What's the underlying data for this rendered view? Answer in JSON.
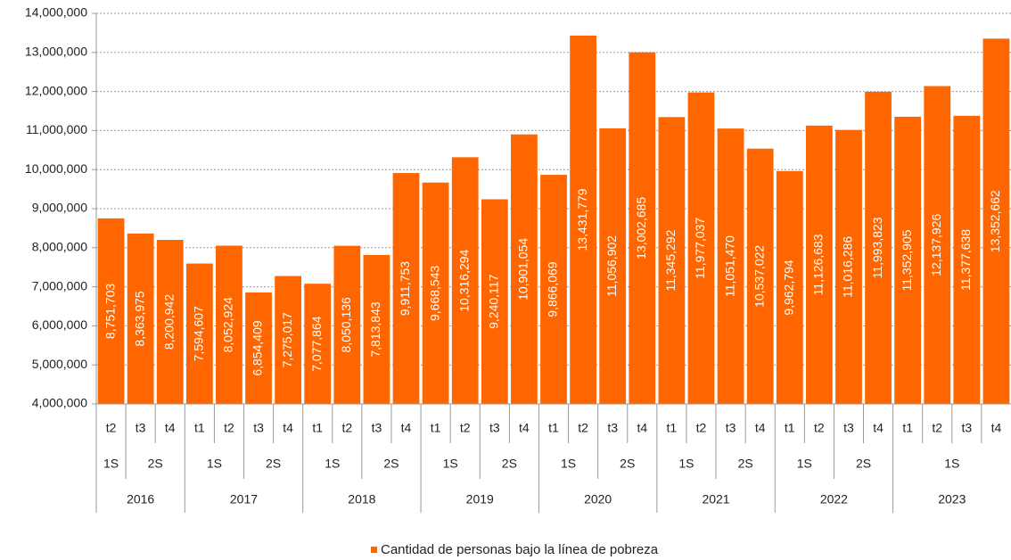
{
  "chart_data": {
    "type": "bar",
    "categories": [
      "t2",
      "t3",
      "t4",
      "t1",
      "t2",
      "t3",
      "t4",
      "t1",
      "t2",
      "t3",
      "t4",
      "t1",
      "t2",
      "t3",
      "t4",
      "t1",
      "t2",
      "t3",
      "t4",
      "t1",
      "t2",
      "t3",
      "t4",
      "t1",
      "t2",
      "t3",
      "t4",
      "t1",
      "t2",
      "t3",
      "t4"
    ],
    "semesters": [
      "1S",
      "2S",
      null,
      "1S",
      null,
      "2S",
      null,
      "1S",
      null,
      "2S",
      null,
      "1S",
      null,
      "2S",
      null,
      "1S",
      null,
      "2S",
      null,
      "1S",
      null,
      "2S",
      null,
      "1S",
      null,
      "2S",
      null,
      "1S",
      null,
      null,
      null
    ],
    "years": [
      "2016",
      null,
      null,
      "2017",
      null,
      null,
      null,
      "2018",
      null,
      null,
      null,
      "2019",
      null,
      null,
      null,
      "2020",
      null,
      null,
      null,
      "2021",
      null,
      null,
      null,
      "2022",
      null,
      null,
      null,
      "2023",
      null,
      null,
      null
    ],
    "series": [
      {
        "name": "Cantidad de personas bajo la línea de pobreza",
        "color": "#ff6600",
        "values": [
          8751703,
          8363975,
          8200942,
          7594607,
          8052924,
          6854409,
          7275017,
          7077864,
          8050136,
          7813843,
          9911753,
          9668543,
          10316294,
          9240117,
          10901054,
          9866069,
          13431779,
          11056902,
          13002685,
          11345292,
          11977037,
          11051470,
          10537022,
          9962794,
          11126683,
          11016286,
          11993823,
          11352905,
          12137926,
          11377638,
          13352662
        ],
        "value_labels": [
          "8,751,703",
          "8,363,975",
          "8,200,942",
          "7,594,607",
          "8,052,924",
          "6,854,409",
          "7,275,017",
          "7,077,864",
          "8,050,136",
          "7,813,843",
          "9,911,753",
          "9,668,543",
          "10,316,294",
          "9,240,117",
          "10,901,054",
          "9,866,069",
          "13,431,779",
          "11,056,902",
          "13,002,685",
          "11,345,292",
          "11,977,037",
          "11,051,470",
          "10,537,022",
          "9,962,794",
          "11,126,683",
          "11,016,286",
          "11,993,823",
          "11,352,905",
          "12,137,926",
          "11,377,638",
          "13,352,662"
        ]
      }
    ],
    "ylim": [
      4000000,
      14000000
    ],
    "yticks": [
      {
        "value": 4000000,
        "label": "4,000,000"
      },
      {
        "value": 5000000,
        "label": "5,000,000"
      },
      {
        "value": 6000000,
        "label": "6,000,000"
      },
      {
        "value": 7000000,
        "label": "7,000,000"
      },
      {
        "value": 8000000,
        "label": "8,000,000"
      },
      {
        "value": 9000000,
        "label": "9,000,000"
      },
      {
        "value": 10000000,
        "label": "10,000,000"
      },
      {
        "value": 11000000,
        "label": "11,000,000"
      },
      {
        "value": 12000000,
        "label": "12,000,000"
      },
      {
        "value": 13000000,
        "label": "13,000,000"
      },
      {
        "value": 14000000,
        "label": "14,000,000"
      }
    ],
    "grid": true,
    "legend": "bottom"
  }
}
